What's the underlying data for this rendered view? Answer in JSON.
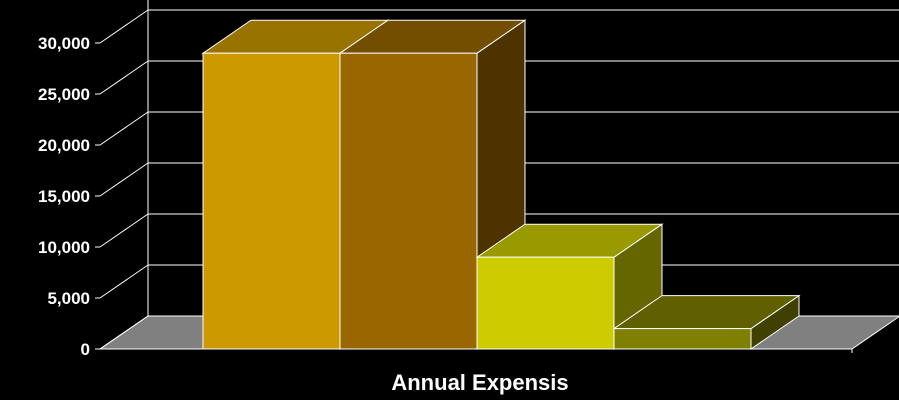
{
  "chart_data": {
    "type": "bar",
    "style": "3d",
    "categories": [
      "",
      "",
      "",
      ""
    ],
    "values": [
      29000,
      29000,
      9000,
      2000
    ],
    "colors": [
      "#CC9900",
      "#996600",
      "#CCCC00",
      "#808000"
    ],
    "xlabel": "Annual Expensis",
    "ylabel": "",
    "ylim": [
      0,
      30000
    ],
    "ytick_values": [
      0,
      5000,
      10000,
      15000,
      20000,
      25000,
      30000
    ],
    "ytick_labels": [
      "0",
      "5,000",
      "10,000",
      "15,000",
      "20,000",
      "25,000",
      "30,000"
    ],
    "grid": true,
    "legend": "none",
    "background": "#000000",
    "floor_color": "#808080"
  }
}
